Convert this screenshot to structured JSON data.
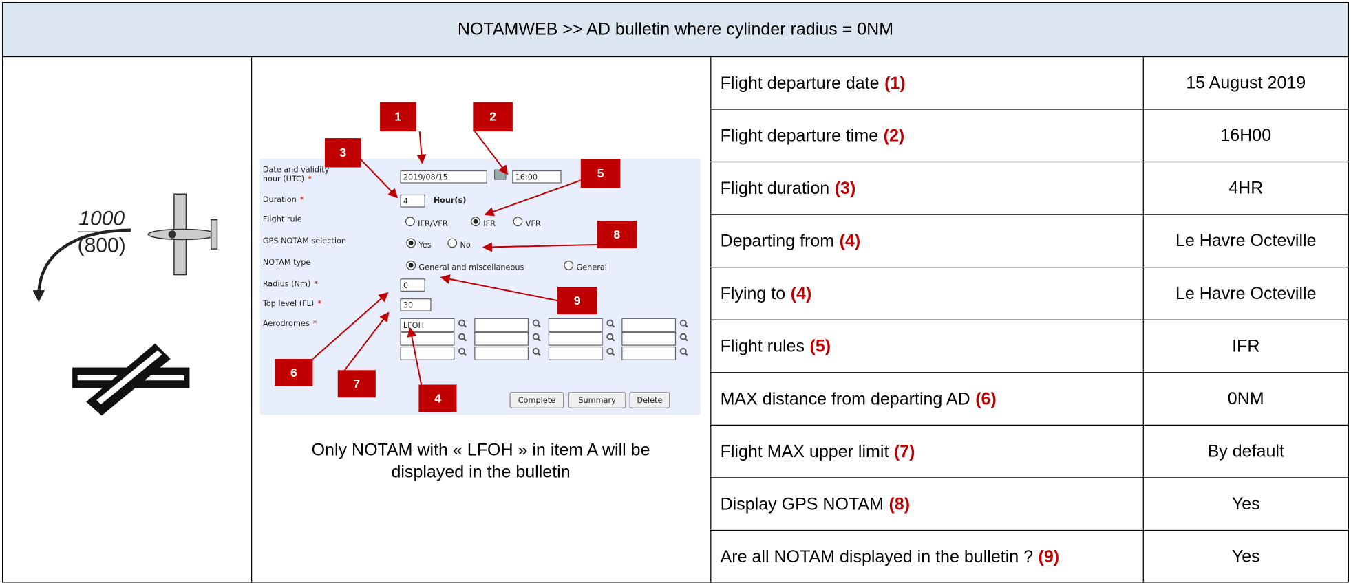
{
  "header": {
    "title": "NOTAMWEB >> AD bulletin where cylinder radius = 0NM"
  },
  "left": {
    "altitude": "1000",
    "floor": "(800)"
  },
  "form": {
    "required": "*",
    "labels": [
      "Date and validity",
      "hour (UTC)",
      "Duration",
      "Flight rule",
      "GPS NOTAM selection",
      "NOTAM type",
      "Radius (Nm)",
      "Top level (FL)",
      "Aerodromes"
    ],
    "date": "2019/08/15",
    "time": "16:00",
    "duration": "4",
    "duration_unit": "Hour(s)",
    "flight_rules": [
      "IFR/VFR",
      "IFR",
      "VFR"
    ],
    "gps": [
      "Yes",
      "No"
    ],
    "notam_types": [
      "General and miscellaneous",
      "General"
    ],
    "radius": "0",
    "top_level": "30",
    "aerodrome": "LFOH",
    "buttons": [
      "Complete",
      "Summary",
      "Delete"
    ],
    "callouts": [
      "1",
      "2",
      "3",
      "4",
      "5",
      "6",
      "7",
      "8",
      "9"
    ]
  },
  "caption": [
    "Only NOTAM with « LFOH » in item A will be",
    "displayed in the bulletin"
  ],
  "table": {
    "rows": [
      [
        "Flight departure date",
        "(1)",
        "15 August 2019"
      ],
      [
        "Flight departure time",
        "(2)",
        "16H00"
      ],
      [
        "Flight duration",
        "(3)",
        "4HR"
      ],
      [
        "Departing from",
        "(4)",
        "Le Havre Octeville"
      ],
      [
        "Flying to",
        "(4)",
        "Le Havre Octeville"
      ],
      [
        "Flight rules",
        "(5)",
        "IFR"
      ],
      [
        "MAX distance from departing AD",
        "(6)",
        "0NM"
      ],
      [
        "Flight MAX upper limit",
        "(7)",
        "By default"
      ],
      [
        "Display GPS NOTAM",
        "(8)",
        "Yes"
      ],
      [
        "Are all NOTAM displayed in the bulletin ?",
        "(9)",
        "Yes"
      ]
    ]
  }
}
